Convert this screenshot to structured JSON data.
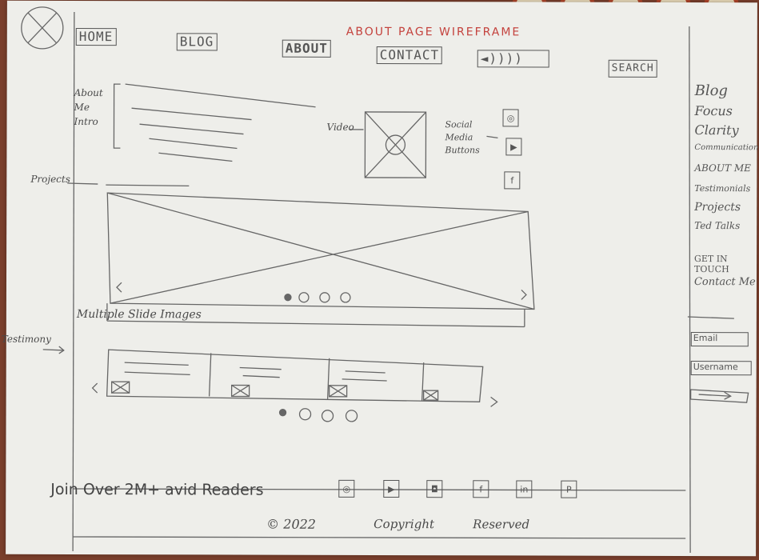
{
  "nav": {
    "home": "HOME",
    "blog": "BLOG",
    "about": "ABOUT",
    "contact": "CONTACT",
    "audio": "◄))))",
    "search": "SEARCH"
  },
  "title": "ABOUT PAGE  WIREFRAME",
  "labels": {
    "about_me": "About Me Intro",
    "projects": "Projects",
    "video": "Video",
    "social": "Social Media Buttons",
    "multiple_slide": "Multiple Slide Images",
    "testimony": "Testimony"
  },
  "sidebar": {
    "items": [
      "Blog",
      "Focus",
      "Clarity",
      "Communication",
      "ABOUT ME",
      "Testimonials",
      "Projects",
      "Ted Talks",
      "GET IN TOUCH",
      "Contact Me"
    ],
    "email": "Email",
    "username": "Username"
  },
  "footer": {
    "join": "Join Over 2M+ avid Readers",
    "copyright_year": "© 2022",
    "copyright": "Copyright",
    "reserved": "Reserved"
  },
  "colors": {
    "pencil": "#555555",
    "red_ink": "#c4423d",
    "paper": "#eeeeea"
  }
}
